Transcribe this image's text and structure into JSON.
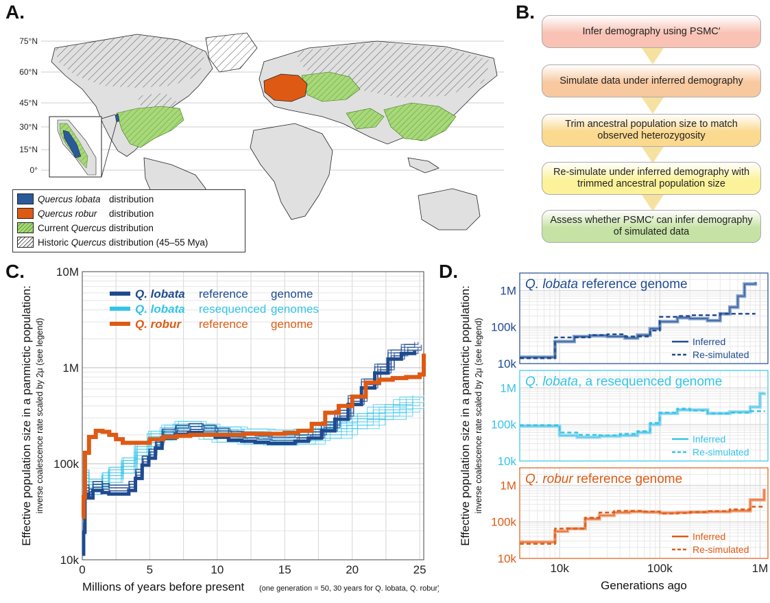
{
  "panels": {
    "a": "A.",
    "b": "B.",
    "c": "C.",
    "d": "D."
  },
  "map": {
    "lat_labels": [
      "75°N",
      "60°N",
      "45°N",
      "30°N",
      "15°N",
      "0°"
    ],
    "legend": [
      {
        "italic": "Quercus lobata",
        "text": "distribution",
        "swatch": "#2a5a9a"
      },
      {
        "italic": "Quercus robur",
        "text": "distribution",
        "swatch": "#de5a14"
      },
      {
        "prefix": "Current",
        "italic": "Quercus",
        "text": "distribution",
        "swatch": "#a7d879"
      },
      {
        "prefix": "Historic",
        "italic": "Quercus",
        "text": "distribution (45–55 Mya)",
        "swatch": "hatch"
      }
    ],
    "colors": {
      "land": "#e0e0e0",
      "current": "#a7d879",
      "lobata": "#2a5a9a",
      "robur": "#de5a14"
    }
  },
  "flow": {
    "steps": [
      {
        "text": "Infer demography using PSMC′",
        "color": "#f9c2b4"
      },
      {
        "text": "Simulate data under inferred demography",
        "color": "#f8c89e"
      },
      {
        "text": "Trim ancestral population size to match observed heterozygosity",
        "color": "#fbd98e"
      },
      {
        "text": "Re-simulate under inferred demography with trimmed ancestral population size",
        "color": "#fbf29a"
      },
      {
        "text": "Assess whether PSMC′ can infer demography of simulated data",
        "color": "#c6e2a4"
      }
    ]
  },
  "chart_data": [
    {
      "type": "line",
      "panel": "C",
      "ylabel": "Effective population size in a panmictic population:",
      "ylabel_sub": "inverse coalescence rate scaled by 2μ (see legend)",
      "xlabel": "Millions of years before present",
      "xlabel_note": "(one generation = 50, 30 years for Q. lobata, Q. robur)",
      "xlim": [
        0,
        25.3
      ],
      "ylim": [
        10000,
        10000000
      ],
      "yscale": "log",
      "yticks": [
        "10k",
        "100k",
        "1M",
        "10M"
      ],
      "xticks": [
        "0",
        "5",
        "10",
        "15",
        "20",
        "25"
      ],
      "grid": true,
      "legend_position": "top-left",
      "series": [
        {
          "name": "Q. lobata reference genome",
          "label_parts": [
            "Q. lobata",
            "reference",
            "genome"
          ],
          "color": "#1f4a8f",
          "x": [
            0,
            0.1,
            0.2,
            0.3,
            0.5,
            0.8,
            1.0,
            1.5,
            2.0,
            2.5,
            3.0,
            3.5,
            4.0,
            4.5,
            5.0,
            5.5,
            6.0,
            7.0,
            8.0,
            9.0,
            10.0,
            11.0,
            12.0,
            13.0,
            14.0,
            15.0,
            16.0,
            17.0,
            18.0,
            19.0,
            20.0,
            21.0,
            22.0,
            23.0,
            24.0,
            25.0
          ],
          "y": [
            13000,
            22000,
            50000,
            55000,
            50000,
            60000,
            60000,
            57000,
            55000,
            55000,
            55000,
            60000,
            80000,
            110000,
            130000,
            165000,
            210000,
            230000,
            240000,
            230000,
            215000,
            200000,
            195000,
            190000,
            185000,
            185000,
            195000,
            210000,
            250000,
            330000,
            470000,
            700000,
            1000000,
            1400000,
            1600000,
            1700000
          ]
        },
        {
          "name": "Q. lobata resequenced genomes",
          "label_parts": [
            "Q. lobata",
            "resequenced",
            "genomes"
          ],
          "color": "#33c4e8",
          "x": [
            0,
            0.1,
            0.3,
            0.5,
            1.0,
            1.5,
            2.0,
            3.0,
            4.0,
            5.0,
            6.0,
            7.0,
            8.0,
            9.0,
            10.0,
            12.0,
            14.0,
            16.0,
            18.0,
            20.0,
            22.0,
            24.0,
            25.0
          ],
          "y": [
            30000,
            90000,
            75000,
            60000,
            60000,
            70000,
            80000,
            100000,
            140000,
            190000,
            220000,
            240000,
            240000,
            225000,
            210000,
            200000,
            195000,
            200000,
            230000,
            290000,
            360000,
            430000,
            450000
          ]
        },
        {
          "name": "Q. robur reference genome",
          "label_parts": [
            "Q. robur",
            "reference",
            "genome"
          ],
          "color": "#de5a14",
          "x": [
            0,
            0.1,
            0.2,
            0.5,
            1.0,
            1.5,
            2.0,
            2.5,
            3.0,
            4.0,
            5.0,
            6.0,
            7.0,
            8.0,
            10.0,
            12.0,
            14.0,
            15.0,
            16.0,
            17.0,
            18.0,
            19.0,
            20.0,
            21.0,
            22.0,
            23.0,
            24.0,
            25.0,
            25.3
          ],
          "y": [
            28000,
            45000,
            130000,
            190000,
            220000,
            215000,
            200000,
            180000,
            165000,
            165000,
            180000,
            190000,
            195000,
            200000,
            200000,
            205000,
            205000,
            210000,
            220000,
            260000,
            340000,
            400000,
            500000,
            700000,
            750000,
            780000,
            800000,
            850000,
            1400000
          ]
        }
      ]
    },
    {
      "type": "line",
      "panel": "D",
      "ylabel": "Effective population size in a panmictic population:",
      "ylabel_sub": "inverse coalescence rate scaled by 2μ (see legend)",
      "xlabel": "Generations ago",
      "xscale": "log",
      "xlim": [
        4000,
        1200000
      ],
      "xticks": [
        "10k",
        "100k",
        "1M"
      ],
      "yscale": "log",
      "yticks": [
        "10k",
        "100k",
        "1M"
      ],
      "grid": true,
      "subplots": [
        {
          "title_italic": "Q. lobata",
          "title_rest": " reference genome",
          "color": "#1f4a8f",
          "light_color": "#6d8fbf",
          "ylim": [
            10000,
            3000000
          ],
          "legend": [
            "Inferred",
            "Re-simulated"
          ],
          "inferred": {
            "x": [
              4000,
              6000,
              9000,
              14000,
              20000,
              30000,
              45000,
              60000,
              80000,
              100000,
              150000,
              200000,
              300000,
              400000,
              500000,
              600000,
              700000,
              900000
            ],
            "y": [
              15000,
              15000,
              40000,
              55000,
              58000,
              55000,
              50000,
              60000,
              90000,
              140000,
              180000,
              170000,
              150000,
              230000,
              350000,
              700000,
              1500000,
              1700000
            ]
          },
          "resimulated": {
            "x": [
              4000,
              6000,
              9000,
              14000,
              20000,
              30000,
              45000,
              60000,
              80000,
              100000,
              150000,
              200000,
              300000,
              400000,
              600000,
              900000
            ],
            "y": [
              14000,
              14000,
              52000,
              52000,
              60000,
              63000,
              55000,
              55000,
              80000,
              190000,
              200000,
              210000,
              210000,
              230000,
              230000,
              230000
            ]
          }
        },
        {
          "title_italic": "Q. lobata",
          "title_rest": ", a resequenced genome",
          "color": "#33c4e8",
          "light_color": "#8fd6ee",
          "ylim": [
            10000,
            3000000
          ],
          "legend": [
            "Inferred",
            "Re-simulated"
          ],
          "inferred": {
            "x": [
              4000,
              8000,
              10000,
              15000,
              25000,
              40000,
              60000,
              80000,
              100000,
              150000,
              200000,
              300000,
              500000,
              800000,
              1000000,
              1100000
            ],
            "y": [
              90000,
              90000,
              50000,
              45000,
              48000,
              50000,
              60000,
              100000,
              200000,
              250000,
              250000,
              200000,
              220000,
              300000,
              700000,
              750000
            ]
          },
          "resimulated": {
            "x": [
              4000,
              8000,
              10000,
              15000,
              25000,
              40000,
              60000,
              80000,
              100000,
              150000,
              200000,
              300000,
              500000,
              800000,
              1100000
            ],
            "y": [
              95000,
              95000,
              60000,
              52000,
              50000,
              55000,
              65000,
              110000,
              210000,
              270000,
              240000,
              200000,
              210000,
              230000,
              240000
            ]
          }
        },
        {
          "title_italic": "Q. robur",
          "title_rest": " reference genome",
          "color": "#de5a14",
          "light_color": "#f0a079",
          "ylim": [
            10000,
            3000000
          ],
          "legend": [
            "Inferred",
            "Re-simulated"
          ],
          "inferred": {
            "x": [
              4000,
              6000,
              9000,
              12000,
              18000,
              25000,
              35000,
              50000,
              70000,
              100000,
              150000,
              200000,
              300000,
              500000,
              800000,
              1100000
            ],
            "y": [
              28000,
              28000,
              55000,
              65000,
              120000,
              150000,
              180000,
              190000,
              185000,
              175000,
              180000,
              185000,
              190000,
              200000,
              400000,
              800000
            ]
          },
          "resimulated": {
            "x": [
              4000,
              6000,
              9000,
              12000,
              18000,
              25000,
              35000,
              50000,
              70000,
              100000,
              150000,
              200000,
              300000,
              500000,
              800000,
              1100000
            ],
            "y": [
              25000,
              25000,
              65000,
              65000,
              130000,
              180000,
              200000,
              200000,
              190000,
              170000,
              175000,
              185000,
              195000,
              220000,
              260000,
              270000
            ]
          }
        }
      ]
    }
  ]
}
